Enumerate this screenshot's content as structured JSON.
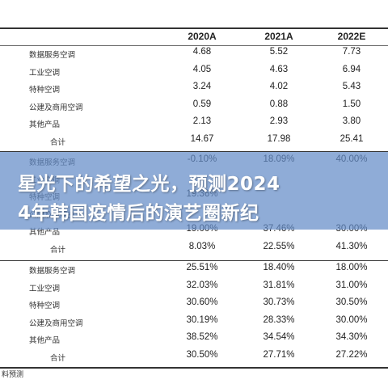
{
  "columns": [
    "2020A",
    "2021A",
    "2022E"
  ],
  "sections": [
    {
      "rows": [
        {
          "label": "数据服务空调",
          "values": [
            "4.68",
            "5.52",
            "7.73"
          ]
        },
        {
          "label": "工业空调",
          "values": [
            "4.05",
            "4.63",
            "6.94"
          ]
        },
        {
          "label": "特种空调",
          "values": [
            "3.24",
            "4.02",
            "5.43"
          ]
        },
        {
          "label": "公建及商用空调",
          "values": [
            "0.59",
            "0.88",
            "1.50"
          ]
        },
        {
          "label": "其他产品",
          "values": [
            "2.13",
            "2.93",
            "3.80"
          ]
        },
        {
          "label": "合计",
          "values": [
            "14.67",
            "17.98",
            "25.41"
          ]
        }
      ]
    },
    {
      "rows": [
        {
          "label": "数据服务空调",
          "values": [
            "-0.10%",
            "18.09%",
            "40.00%"
          ]
        },
        {
          "label": "工业空调",
          "values": [
            "",
            "",
            ""
          ]
        },
        {
          "label": "特种空调",
          "values": [
            "19.36%",
            "",
            ""
          ]
        },
        {
          "label": "公建及商用空调",
          "values": [
            "",
            "",
            ""
          ]
        },
        {
          "label": "其他产品",
          "values": [
            "19.00%",
            "37.46%",
            "30.00%"
          ]
        },
        {
          "label": "合计",
          "values": [
            "8.03%",
            "22.55%",
            "41.30%"
          ]
        }
      ]
    },
    {
      "rows": [
        {
          "label": "数据服务空调",
          "values": [
            "25.51%",
            "18.40%",
            "18.00%"
          ]
        },
        {
          "label": "工业空调",
          "values": [
            "32.03%",
            "31.81%",
            "31.00%"
          ]
        },
        {
          "label": "特种空调",
          "values": [
            "30.60%",
            "30.73%",
            "30.50%"
          ]
        },
        {
          "label": "公建及商用空调",
          "values": [
            "30.19%",
            "28.33%",
            "30.00%"
          ]
        },
        {
          "label": "其他产品",
          "values": [
            "38.52%",
            "34.54%",
            "34.30%"
          ]
        },
        {
          "label": "合计",
          "values": [
            "30.50%",
            "27.71%",
            "27.22%"
          ]
        }
      ]
    }
  ],
  "banner": {
    "line1": "星光下的希望之光，预测2024",
    "line2": "4年韩国疫情后的演艺圈新纪"
  },
  "source": "料预测"
}
